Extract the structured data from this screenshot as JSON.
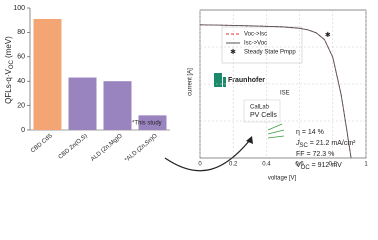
{
  "chart_data": [
    {
      "type": "bar",
      "y_label": {
        "main": "QFLs-q·V",
        "sub": "OC",
        "unit": " (meV)"
      },
      "categories": [
        "CBD CdS",
        "CBD Zn(O,S)",
        "ALD (Zn,Mg)O",
        "*ALD (Zn,Sn)O"
      ],
      "values": [
        91,
        43,
        40,
        12
      ],
      "colors": [
        "#f4a574",
        "#9a84bf",
        "#9a84bf",
        "#9a84bf"
      ],
      "ylim": [
        0,
        100
      ],
      "yticks": [
        0,
        20,
        40,
        60,
        80,
        100
      ],
      "annotation": "*This study"
    },
    {
      "type": "line",
      "x_label": "voltage [V]",
      "y_label": "current [A]",
      "xlim": [
        0,
        1
      ],
      "xticks": [
        0,
        0.2,
        0.4,
        0.6,
        0.8,
        1
      ],
      "ylim": [
        0,
        1
      ],
      "grid": true,
      "x": [
        0,
        0.1,
        0.2,
        0.3,
        0.4,
        0.5,
        0.6,
        0.65,
        0.7,
        0.75,
        0.8,
        0.85,
        0.88,
        0.91
      ],
      "series": [
        {
          "name": "Voc->Isc",
          "color": "#e0303a",
          "dash": true,
          "values": [
            0.9,
            0.898,
            0.896,
            0.893,
            0.89,
            0.886,
            0.876,
            0.866,
            0.846,
            0.8,
            0.68,
            0.43,
            0.22,
            0
          ]
        },
        {
          "name": "Isc->Voc",
          "color": "#555555",
          "dash": false,
          "values": [
            0.9,
            0.898,
            0.896,
            0.893,
            0.89,
            0.886,
            0.876,
            0.866,
            0.846,
            0.8,
            0.68,
            0.43,
            0.22,
            0
          ]
        }
      ],
      "points": {
        "name": "Steady State Pmpp",
        "color": "#3050c0",
        "x": [
          0.77
        ],
        "values": [
          0.83
        ]
      },
      "logo": {
        "name": "Fraunhofer",
        "sub": "ISE"
      },
      "callab": {
        "name": "CalLab",
        "sub": "PV Cells"
      },
      "results": {
        "eta": "η = 14 %",
        "jsc": {
          "sym": "J",
          "sub": "SC",
          "rest": " = 21.2 mA/cm²"
        },
        "ff": "FF = 72.3 %",
        "voc": {
          "sym": "V",
          "sub": "OC",
          "rest": " = 912 mV"
        }
      }
    }
  ]
}
